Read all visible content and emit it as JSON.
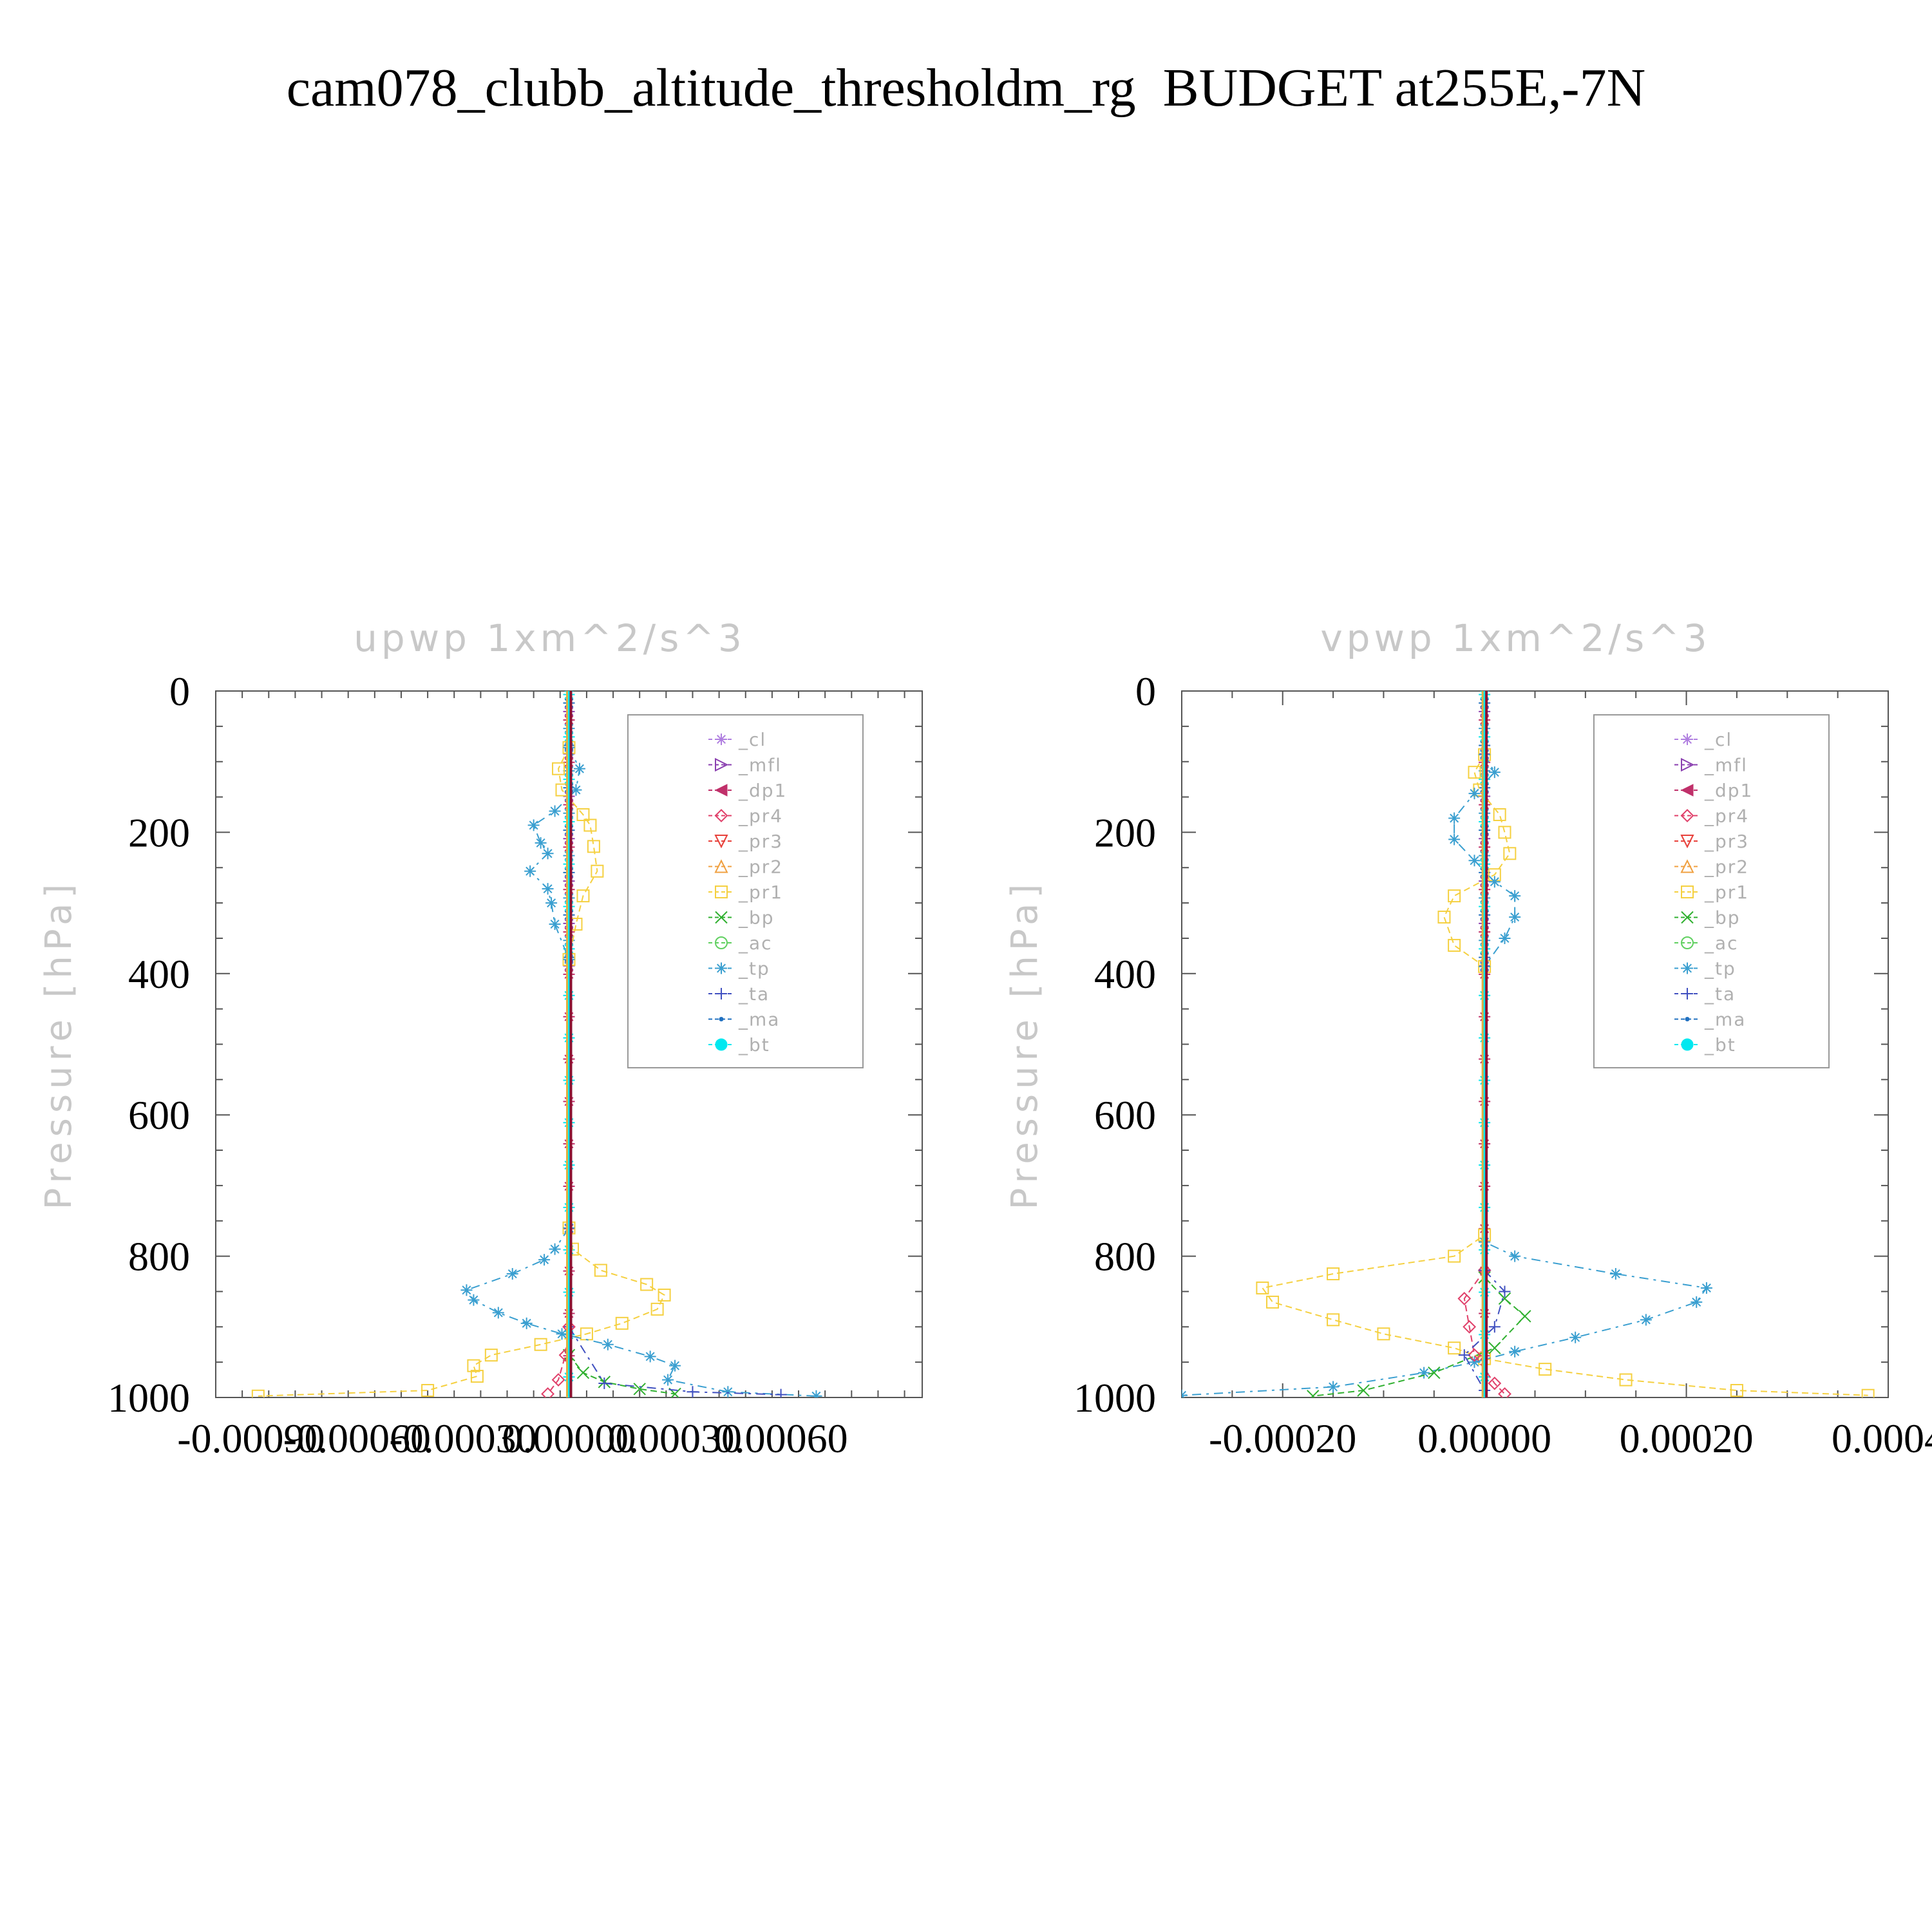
{
  "title": "cam078_clubb_altitude_thresholdm_rg  BUDGET at255E,-7N",
  "legend_entries": [
    {
      "name": "_cl",
      "color": "#b07fe0",
      "marker": "star"
    },
    {
      "name": "_mfl",
      "color": "#8a3fb0",
      "marker": "tri-right"
    },
    {
      "name": "_dp1",
      "color": "#c0306a",
      "marker": "tri-left"
    },
    {
      "name": "_pr4",
      "color": "#e0406a",
      "marker": "diamond"
    },
    {
      "name": "_pr3",
      "color": "#e8403a",
      "marker": "tri-down"
    },
    {
      "name": "_pr2",
      "color": "#f0a040",
      "marker": "tri-up"
    },
    {
      "name": "_pr1",
      "color": "#f5d040",
      "marker": "square"
    },
    {
      "name": "_bp",
      "color": "#30b030",
      "marker": "x"
    },
    {
      "name": "_ac",
      "color": "#60d060",
      "marker": "circle"
    },
    {
      "name": "_tp",
      "color": "#3a9fd0",
      "marker": "asterisk"
    },
    {
      "name": "_ta",
      "color": "#4050c0",
      "marker": "plus"
    },
    {
      "name": "_ma",
      "color": "#2070c0",
      "marker": "dot"
    },
    {
      "name": "_bt",
      "color": "#00e8f0",
      "marker": "filled-circle"
    }
  ],
  "chart_data": [
    {
      "type": "line",
      "title": "upwp   1xm^2/s^3",
      "ylabel": "Pressure [hPa]",
      "xlabel": "",
      "xlim": [
        -0.001,
        0.001
      ],
      "ylim": [
        1000,
        0
      ],
      "xticks": [
        "-0.00090",
        "-0.00060",
        "-0.00030",
        "0.00000",
        "0.00030",
        "0.00060"
      ],
      "xtick_values": [
        -0.0009,
        -0.0006,
        -0.0003,
        0.0,
        0.0003,
        0.0006
      ],
      "yticks": [
        "0",
        "200",
        "400",
        "600",
        "800",
        "1000"
      ],
      "ytick_values": [
        0,
        200,
        400,
        600,
        800,
        1000
      ],
      "legend_position": "upper-right",
      "series": [
        {
          "name": "_pr1",
          "points": [
            [
              0.0,
              80
            ],
            [
              -3e-05,
              110
            ],
            [
              -2e-05,
              140
            ],
            [
              4e-05,
              175
            ],
            [
              6e-05,
              190
            ],
            [
              7e-05,
              220
            ],
            [
              8e-05,
              255
            ],
            [
              4e-05,
              290
            ],
            [
              2e-05,
              330
            ],
            [
              0.0,
              380
            ],
            [
              0.0,
              760
            ],
            [
              1e-05,
              790
            ],
            [
              9e-05,
              820
            ],
            [
              0.00022,
              840
            ],
            [
              0.00027,
              855
            ],
            [
              0.00025,
              875
            ],
            [
              0.00015,
              895
            ],
            [
              5e-05,
              910
            ],
            [
              -8e-05,
              925
            ],
            [
              -0.00022,
              940
            ],
            [
              -0.00027,
              955
            ],
            [
              -0.00026,
              970
            ],
            [
              -0.0004,
              990
            ],
            [
              -0.00088,
              998
            ]
          ]
        },
        {
          "name": "_tp",
          "points": [
            [
              0.0,
              80
            ],
            [
              3e-05,
              110
            ],
            [
              2e-05,
              140
            ],
            [
              -4e-05,
              170
            ],
            [
              -0.0001,
              190
            ],
            [
              -8e-05,
              215
            ],
            [
              -6e-05,
              230
            ],
            [
              -0.00011,
              255
            ],
            [
              -6e-05,
              280
            ],
            [
              -5e-05,
              300
            ],
            [
              -4e-05,
              330
            ],
            [
              0.0,
              380
            ],
            [
              0.0,
              760
            ],
            [
              -4e-05,
              790
            ],
            [
              -7e-05,
              805
            ],
            [
              -0.00016,
              825
            ],
            [
              -0.00029,
              848
            ],
            [
              -0.00027,
              862
            ],
            [
              -0.0002,
              880
            ],
            [
              -0.00012,
              895
            ],
            [
              -2e-05,
              910
            ],
            [
              0.00011,
              925
            ],
            [
              0.00023,
              942
            ],
            [
              0.0003,
              955
            ],
            [
              0.00028,
              975
            ],
            [
              0.00045,
              992
            ],
            [
              0.0007,
              998
            ]
          ]
        },
        {
          "name": "_bp",
          "points": [
            [
              0.0,
              940
            ],
            [
              4e-05,
              965
            ],
            [
              0.0001,
              978
            ],
            [
              0.0002,
              988
            ],
            [
              0.0003,
              995
            ]
          ]
        },
        {
          "name": "_ta",
          "points": [
            [
              0.0,
              900
            ],
            [
              0.0001,
              980
            ],
            [
              0.00035,
              992
            ],
            [
              0.0006,
              996
            ]
          ]
        },
        {
          "name": "_pr4",
          "points": [
            [
              0.0,
              900
            ],
            [
              -1e-05,
              940
            ],
            [
              -3e-05,
              975
            ],
            [
              -6e-05,
              995
            ]
          ]
        },
        {
          "name": "_bt",
          "points": [
            [
              0.0,
              0
            ],
            [
              0.0,
              1000
            ]
          ]
        }
      ]
    },
    {
      "type": "line",
      "title": "vpwp   1xm^2/s^3",
      "ylabel": "Pressure [hPa]",
      "xlabel": "",
      "xlim": [
        -0.0003,
        0.0004
      ],
      "ylim": [
        1000,
        0
      ],
      "xticks": [
        "-0.00020",
        "0.00000",
        "0.00020",
        "0.0004"
      ],
      "xtick_values": [
        -0.0002,
        0.0,
        0.0002,
        0.0004
      ],
      "yticks": [
        "0",
        "200",
        "400",
        "600",
        "800",
        "1000"
      ],
      "ytick_values": [
        0,
        200,
        400,
        600,
        800,
        1000
      ],
      "legend_position": "upper-right",
      "series": [
        {
          "name": "_pr1",
          "points": [
            [
              0.0,
              90
            ],
            [
              -1e-05,
              115
            ],
            [
              -5e-06,
              140
            ],
            [
              1.5e-05,
              175
            ],
            [
              2e-05,
              200
            ],
            [
              2.5e-05,
              230
            ],
            [
              1e-05,
              260
            ],
            [
              -3e-05,
              290
            ],
            [
              -4e-05,
              320
            ],
            [
              -3e-05,
              360
            ],
            [
              0.0,
              390
            ],
            [
              0.0,
              770
            ],
            [
              -3e-05,
              800
            ],
            [
              -0.00015,
              825
            ],
            [
              -0.00022,
              845
            ],
            [
              -0.00021,
              865
            ],
            [
              -0.00015,
              890
            ],
            [
              -0.0001,
              910
            ],
            [
              -3e-05,
              930
            ],
            [
              0.0,
              945
            ],
            [
              6e-05,
              960
            ],
            [
              0.00014,
              975
            ],
            [
              0.00025,
              990
            ],
            [
              0.00038,
              997
            ]
          ]
        },
        {
          "name": "_tp",
          "points": [
            [
              0.0,
              90
            ],
            [
              1e-05,
              115
            ],
            [
              -1e-05,
              145
            ],
            [
              -3e-05,
              180
            ],
            [
              -3e-05,
              210
            ],
            [
              -1e-05,
              240
            ],
            [
              1e-05,
              270
            ],
            [
              3e-05,
              290
            ],
            [
              3e-05,
              320
            ],
            [
              2e-05,
              350
            ],
            [
              0.0,
              390
            ],
            [
              0.0,
              780
            ],
            [
              3e-05,
              800
            ],
            [
              0.00013,
              825
            ],
            [
              0.00022,
              845
            ],
            [
              0.00021,
              865
            ],
            [
              0.00016,
              890
            ],
            [
              9e-05,
              915
            ],
            [
              3e-05,
              935
            ],
            [
              -1e-05,
              950
            ],
            [
              -6e-05,
              965
            ],
            [
              -0.00015,
              985
            ],
            [
              -0.0003,
              997
            ]
          ]
        },
        {
          "name": "_bp",
          "points": [
            [
              0.0,
              830
            ],
            [
              2e-05,
              860
            ],
            [
              4e-05,
              885
            ],
            [
              1e-05,
              930
            ],
            [
              -5e-05,
              965
            ],
            [
              -0.00012,
              990
            ],
            [
              -0.00017,
              998
            ]
          ]
        },
        {
          "name": "_pr4",
          "points": [
            [
              0.0,
              820
            ],
            [
              -2e-05,
              860
            ],
            [
              -1.5e-05,
              900
            ],
            [
              -1e-05,
              940
            ],
            [
              1e-05,
              980
            ],
            [
              2e-05,
              995
            ]
          ]
        },
        {
          "name": "_ta",
          "points": [
            [
              0.0,
              820
            ],
            [
              2e-05,
              850
            ],
            [
              1e-05,
              900
            ],
            [
              -2e-05,
              940
            ],
            [
              0.0,
              990
            ]
          ]
        },
        {
          "name": "_bt",
          "points": [
            [
              0.0,
              0
            ],
            [
              0.0,
              1000
            ]
          ]
        }
      ]
    }
  ]
}
